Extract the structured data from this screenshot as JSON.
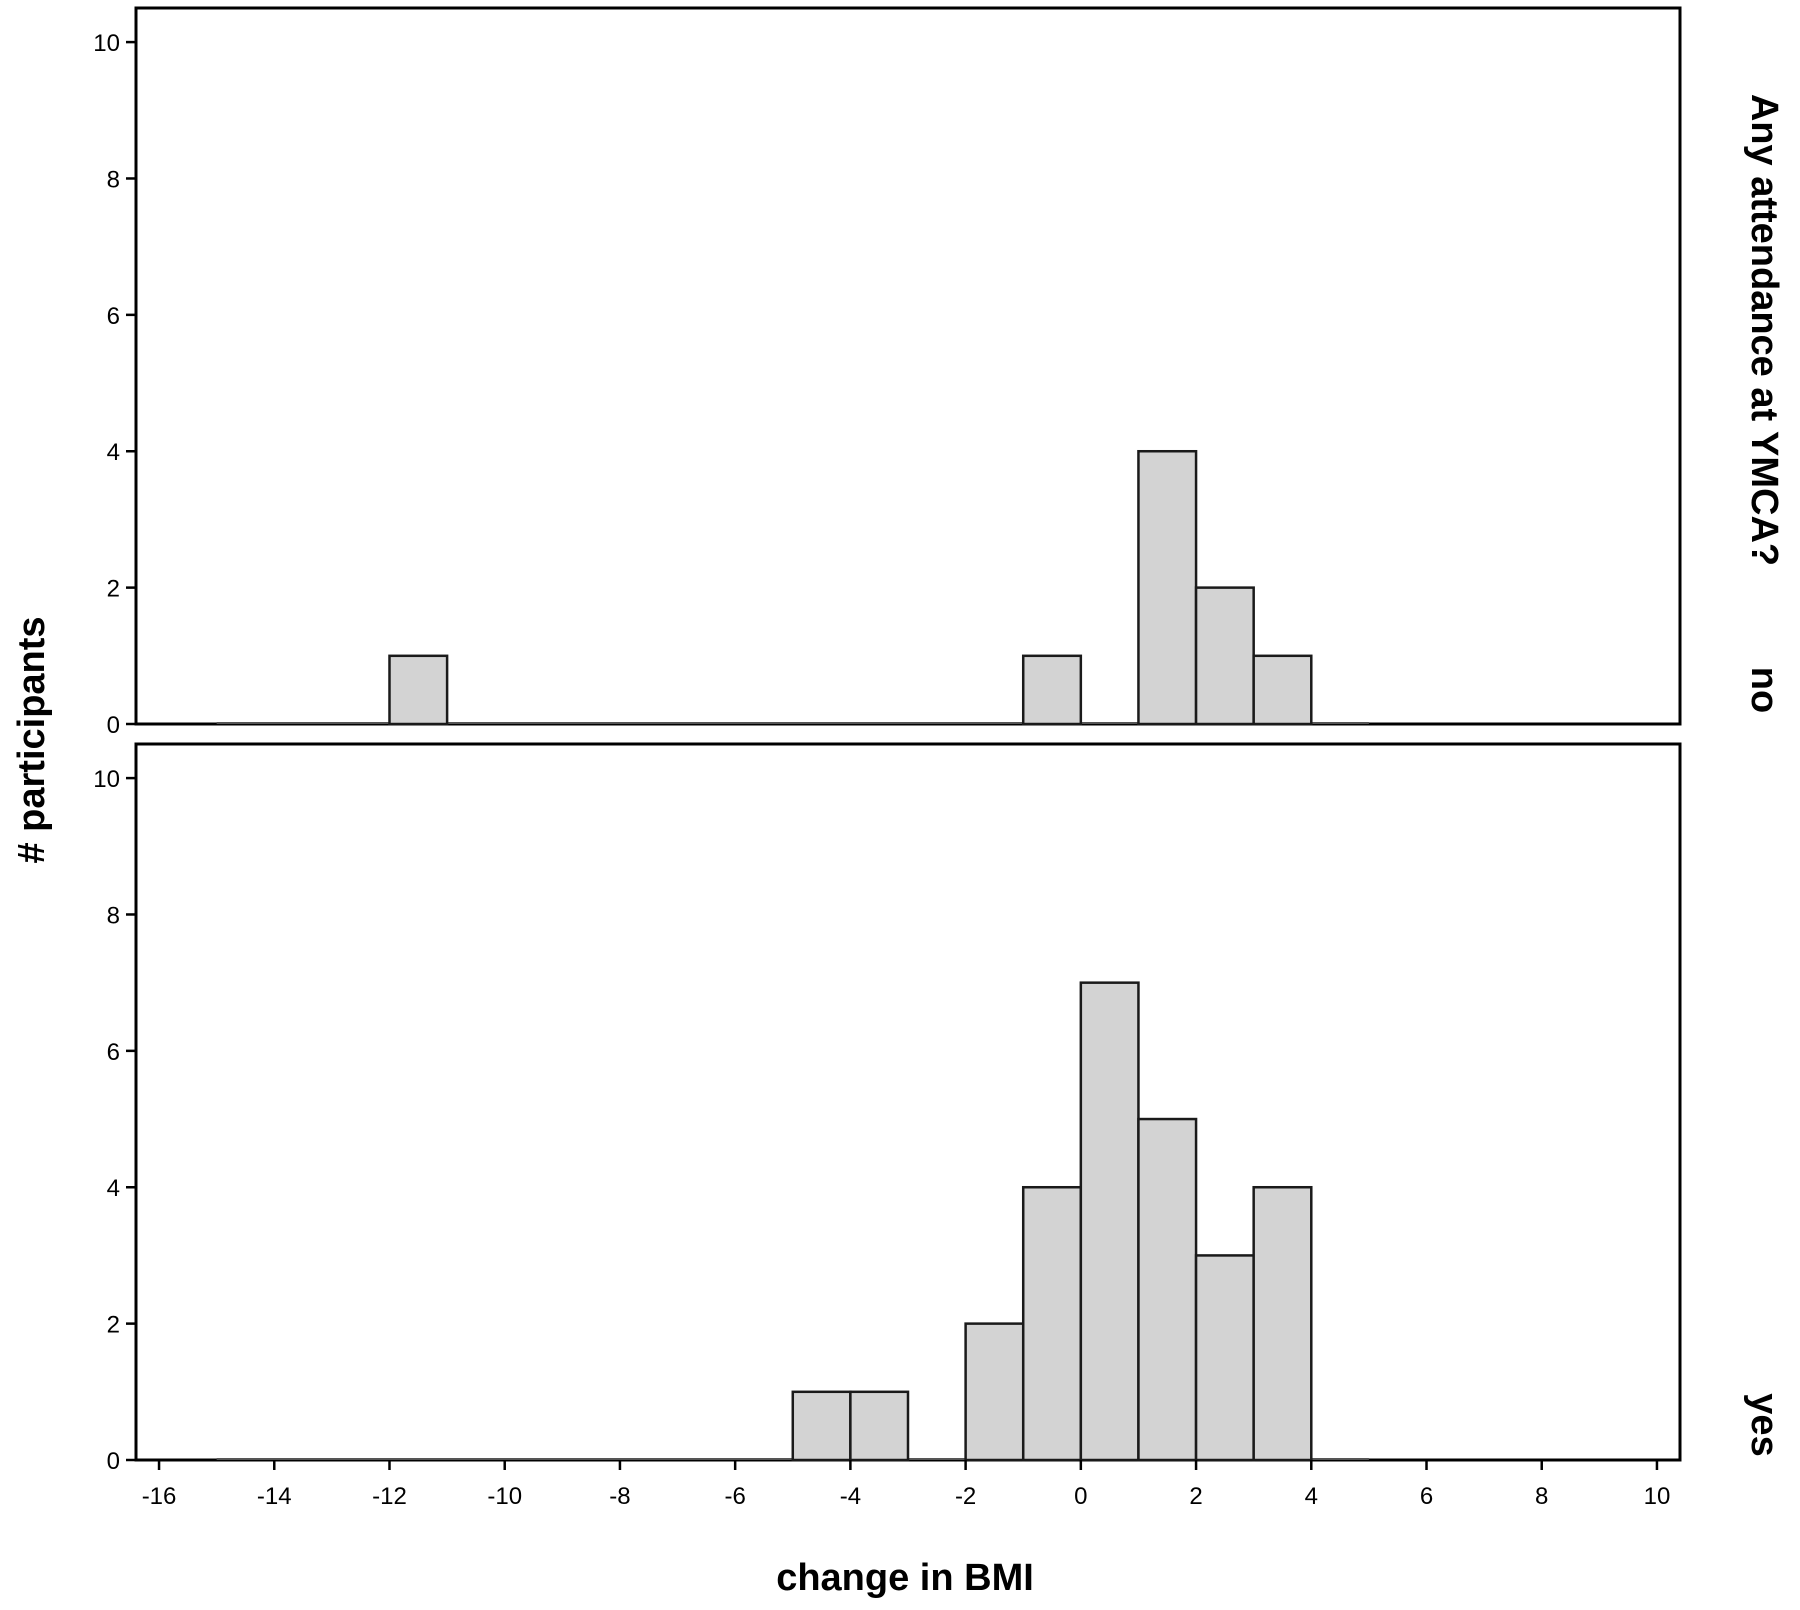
{
  "chart_data": {
    "type": "bar",
    "subtype": "histogram-faceted",
    "xlabel": "change in BMI",
    "ylabel": "# participants",
    "facet_title": "Any attendance at YMCA?",
    "xlim": [
      -16.4,
      10.4
    ],
    "ylim": [
      0,
      10.5
    ],
    "x_ticks": [
      -16,
      -14,
      -12,
      -10,
      -8,
      -6,
      -4,
      -2,
      0,
      2,
      4,
      6,
      8,
      10
    ],
    "y_ticks": [
      0,
      2,
      4,
      6,
      8,
      10
    ],
    "bin_width": 1,
    "bins_range": [
      -15,
      5
    ],
    "bar_color": "#d3d3d3",
    "panels": [
      {
        "label": "no",
        "bins": [
          {
            "start": -12,
            "end": -11,
            "count": 1
          },
          {
            "start": -1,
            "end": 0,
            "count": 1
          },
          {
            "start": 1,
            "end": 2,
            "count": 4
          },
          {
            "start": 2,
            "end": 3,
            "count": 2
          },
          {
            "start": 3,
            "end": 4,
            "count": 1
          }
        ]
      },
      {
        "label": "yes",
        "bins": [
          {
            "start": -5,
            "end": -4,
            "count": 1
          },
          {
            "start": -4,
            "end": -3,
            "count": 1
          },
          {
            "start": -2,
            "end": -1,
            "count": 2
          },
          {
            "start": -1,
            "end": 0,
            "count": 4
          },
          {
            "start": 0,
            "end": 1,
            "count": 7
          },
          {
            "start": 1,
            "end": 2,
            "count": 5
          },
          {
            "start": 2,
            "end": 3,
            "count": 3
          },
          {
            "start": 3,
            "end": 4,
            "count": 4
          }
        ]
      }
    ]
  }
}
